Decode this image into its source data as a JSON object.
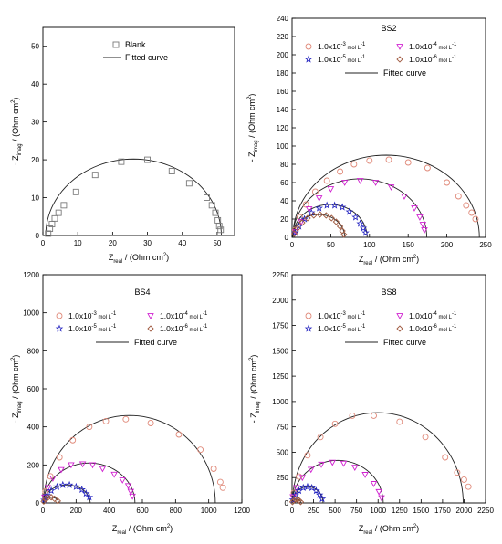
{
  "colors": {
    "blank": "#7a7a7a",
    "c1e3": "#e08a7a",
    "c1e4": "#d020d0",
    "c1e5": "#2020c0",
    "c1e6": "#a05a40",
    "fit": "#222222"
  },
  "symbols": {
    "square": "□",
    "circle": "○",
    "tri": "▽",
    "star": "☆",
    "diamond": "◇"
  },
  "axis_text": {
    "ytitle_minus": "- Z",
    "ytitle_sub": "imag",
    "ytitle_unit": " / (Ohm cm",
    "xtitle_z": "Z",
    "xtitle_sub": "real",
    "xtitle_unit": " / (Ohm cm",
    "sq": "2",
    "close": ")"
  },
  "chart_data": [
    {
      "type": "scatter",
      "title": "",
      "xlim": [
        0,
        55
      ],
      "ylim": [
        0,
        55
      ],
      "xticks": [
        "0",
        "10",
        "20",
        "30",
        "40",
        "50"
      ],
      "yticks": [
        "0",
        "10",
        "20",
        "30",
        "40",
        "50"
      ],
      "legend": {
        "position": "top-center",
        "entries": [
          "Blank",
          "Fitted curve"
        ]
      },
      "series": [
        {
          "name": "Blank",
          "marker": "square",
          "color_key": "blank",
          "x": [
            1.5,
            2,
            2.6,
            3.4,
            4.5,
            6,
            9.5,
            15,
            22.5,
            30,
            37,
            42,
            47,
            48.5,
            49.5,
            50.2,
            50.6,
            51
          ],
          "y": [
            0.5,
            1.8,
            3,
            4.5,
            6,
            8,
            11.5,
            16,
            19.5,
            20,
            17,
            13.8,
            10,
            8,
            6,
            4,
            2.5,
            1.5
          ]
        }
      ],
      "fit": {
        "x0": 0.8,
        "x1": 51.2,
        "yc": -3.5,
        "top": 20.2
      }
    },
    {
      "type": "scatter",
      "title": "BS2",
      "xlim": [
        0,
        250
      ],
      "ylim": [
        0,
        240
      ],
      "xticks": [
        "0",
        "50",
        "100",
        "150",
        "200",
        "250"
      ],
      "yticks": [
        "0",
        "20",
        "40",
        "60",
        "80",
        "100",
        "120",
        "140",
        "160",
        "180",
        "200",
        "220",
        "240"
      ],
      "legend": {
        "position": "top",
        "entries": [
          "1.0x10-3 mol L-1",
          "1.0x10-4 mol L-1",
          "1.0x10-5 mol L-1",
          "1.0x10-6 mol L-1",
          "Fitted curve"
        ]
      },
      "series": [
        {
          "name": "1.0x10-3 mol L-1",
          "marker": "circle",
          "color_key": "c1e3",
          "x": [
            4,
            10,
            18,
            30,
            45,
            62,
            80,
            100,
            125,
            150,
            175,
            200,
            215,
            225,
            232,
            237
          ],
          "y": [
            8,
            22,
            36,
            50,
            62,
            72,
            80,
            84,
            85,
            82,
            76,
            60,
            45,
            35,
            27,
            20
          ]
        },
        {
          "name": "1.0x10-4 mol L-1",
          "marker": "tri",
          "color_key": "c1e4",
          "x": [
            5,
            12,
            22,
            35,
            50,
            68,
            88,
            108,
            128,
            145,
            158,
            165,
            169,
            171
          ],
          "y": [
            6,
            17,
            31,
            43,
            53,
            60,
            62,
            60,
            55,
            45,
            32,
            22,
            14,
            8
          ]
        },
        {
          "name": "1.0x10-5 mol L-1",
          "marker": "star",
          "color_key": "c1e5",
          "x": [
            4,
            9,
            16,
            25,
            35,
            45,
            55,
            65,
            74,
            82,
            88,
            92,
            95
          ],
          "y": [
            5,
            12,
            20,
            27,
            32,
            35,
            35,
            33,
            28,
            22,
            15,
            10,
            5
          ]
        },
        {
          "name": "1.0x10-6 mol L-1",
          "marker": "diamond",
          "color_key": "c1e6",
          "x": [
            3,
            7,
            13,
            20,
            28,
            36,
            44,
            51,
            57,
            62,
            65,
            67
          ],
          "y": [
            4,
            10,
            16,
            21,
            24,
            25,
            24,
            21,
            17,
            12,
            7,
            3
          ]
        }
      ],
      "fits": [
        {
          "x0": 1,
          "x1": 242,
          "top": 90
        },
        {
          "x0": 1,
          "x1": 174,
          "top": 64
        },
        {
          "x0": 1,
          "x1": 97,
          "top": 36
        },
        {
          "x0": 1,
          "x1": 68,
          "top": 25
        }
      ]
    },
    {
      "type": "scatter",
      "title": "BS4",
      "xlim": [
        0,
        1200
      ],
      "ylim": [
        0,
        1200
      ],
      "xticks": [
        "0",
        "200",
        "400",
        "600",
        "800",
        "1000",
        "1200"
      ],
      "yticks": [
        "0",
        "200",
        "400",
        "600",
        "800",
        "1000",
        "1200"
      ],
      "legend": {
        "position": "top",
        "entries": [
          "1.0x10-3 mol L-1",
          "1.0x10-4 mol L-1",
          "1.0x10-5 mol L-1",
          "1.0x10-6 mol L-1",
          "Fitted curve"
        ]
      },
      "series": [
        {
          "name": "1.0x10-3 mol L-1",
          "marker": "circle",
          "color_key": "c1e3",
          "x": [
            15,
            45,
            100,
            180,
            280,
            380,
            500,
            650,
            820,
            950,
            1030,
            1070,
            1085
          ],
          "y": [
            60,
            140,
            240,
            330,
            400,
            430,
            440,
            420,
            360,
            280,
            180,
            110,
            80
          ]
        },
        {
          "name": "1.0x10-4 mol L-1",
          "marker": "tri",
          "color_key": "c1e4",
          "x": [
            10,
            30,
            60,
            110,
            170,
            240,
            300,
            360,
            430,
            480,
            515,
            530,
            540
          ],
          "y": [
            30,
            80,
            130,
            175,
            200,
            205,
            200,
            180,
            150,
            120,
            90,
            60,
            35
          ]
        },
        {
          "name": "1.0x10-5 mol L-1",
          "marker": "star",
          "color_key": "c1e5",
          "x": [
            8,
            25,
            50,
            85,
            120,
            160,
            200,
            235,
            260,
            280
          ],
          "y": [
            15,
            40,
            65,
            85,
            95,
            95,
            85,
            70,
            50,
            30
          ]
        },
        {
          "name": "1.0x10-6 mol L-1",
          "marker": "diamond",
          "color_key": "c1e6",
          "x": [
            5,
            15,
            30,
            50,
            70,
            90
          ],
          "y": [
            8,
            20,
            28,
            30,
            22,
            10
          ]
        }
      ],
      "fits": [
        {
          "x0": 5,
          "x1": 1040,
          "top": 460
        },
        {
          "x0": 5,
          "x1": 555,
          "top": 210
        },
        {
          "x0": 5,
          "x1": 285,
          "top": 95
        },
        {
          "x0": 3,
          "x1": 95,
          "top": 30
        }
      ]
    },
    {
      "type": "scatter",
      "title": "BS8",
      "xlim": [
        0,
        2250
      ],
      "ylim": [
        0,
        2250
      ],
      "xticks": [
        "0",
        "250",
        "500",
        "750",
        "1000",
        "1250",
        "1500",
        "1750",
        "2000",
        "2250"
      ],
      "yticks": [
        "0",
        "250",
        "500",
        "750",
        "1000",
        "1250",
        "1500",
        "1750",
        "2000",
        "2250"
      ],
      "legend": {
        "position": "top",
        "entries": [
          "1.0x10-3 mol L-1",
          "1.0x10-4 mol L-1",
          "1.0x10-5 mol L-1",
          "1.0x10-6 mol L-1",
          "Fitted curve"
        ]
      },
      "series": [
        {
          "name": "1.0x10-3 mol L-1",
          "marker": "circle",
          "color_key": "c1e3",
          "x": [
            20,
            80,
            180,
            330,
            500,
            700,
            950,
            1250,
            1550,
            1780,
            1920,
            2000,
            2050
          ],
          "y": [
            100,
            260,
            470,
            650,
            780,
            860,
            860,
            800,
            650,
            450,
            300,
            230,
            160
          ]
        },
        {
          "name": "1.0x10-4 mol L-1",
          "marker": "tri",
          "color_key": "c1e4",
          "x": [
            10,
            50,
            120,
            220,
            340,
            470,
            600,
            730,
            850,
            950,
            1010,
            1040
          ],
          "y": [
            60,
            150,
            250,
            330,
            380,
            400,
            390,
            350,
            280,
            190,
            110,
            50
          ]
        },
        {
          "name": "1.0x10-5 mol L-1",
          "marker": "star",
          "color_key": "c1e5",
          "x": [
            10,
            40,
            80,
            130,
            180,
            230,
            280,
            320,
            350
          ],
          "y": [
            30,
            80,
            120,
            150,
            160,
            150,
            120,
            80,
            40
          ]
        },
        {
          "name": "1.0x10-6 mol L-1",
          "marker": "diamond",
          "color_key": "c1e6",
          "x": [
            5,
            20,
            40,
            60,
            80,
            100
          ],
          "y": [
            10,
            25,
            35,
            35,
            25,
            10
          ]
        }
      ],
      "fits": [
        {
          "x0": 5,
          "x1": 1990,
          "top": 890
        },
        {
          "x0": 5,
          "x1": 1060,
          "top": 420
        },
        {
          "x0": 5,
          "x1": 360,
          "top": 160
        },
        {
          "x0": 3,
          "x1": 105,
          "top": 36
        }
      ]
    }
  ]
}
